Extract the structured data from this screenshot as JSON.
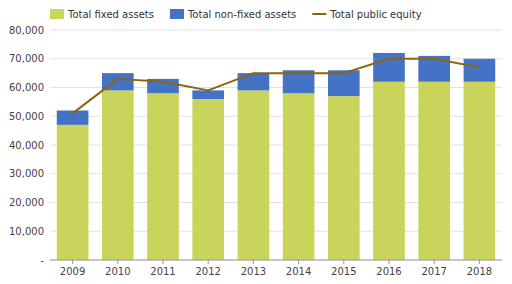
{
  "chart_data": {
    "type": "bar",
    "stacked": true,
    "grid": true,
    "legend": "top",
    "categories": [
      "2009",
      "2010",
      "2011",
      "2012",
      "2013",
      "2014",
      "2015",
      "2016",
      "2017",
      "2018"
    ],
    "series": [
      {
        "name": "Total fixed assets",
        "color": "#c8d45a",
        "type": "bar",
        "values": [
          47000,
          59000,
          58000,
          56000,
          59000,
          58000,
          57000,
          62000,
          62000,
          62000
        ]
      },
      {
        "name": "Total non-fixed assets",
        "color": "#4472c4",
        "type": "bar",
        "values": [
          5000,
          6000,
          5000,
          3000,
          6000,
          8000,
          9000,
          10000,
          9000,
          8000
        ]
      },
      {
        "name": "Total public equity",
        "color": "#8b6508",
        "type": "line",
        "values": [
          51000,
          63000,
          62000,
          59000,
          65000,
          65000,
          65000,
          70000,
          70000,
          67000
        ]
      }
    ],
    "ylim": [
      0,
      80000
    ],
    "yticks": [
      {
        "value": 0,
        "label": "-"
      },
      {
        "value": 10000,
        "label": "10,000"
      },
      {
        "value": 20000,
        "label": "20,000"
      },
      {
        "value": 30000,
        "label": "30,000"
      },
      {
        "value": 40000,
        "label": "40,000"
      },
      {
        "value": 50000,
        "label": "50,000"
      },
      {
        "value": 60000,
        "label": "60,000"
      },
      {
        "value": 70000,
        "label": "70,000"
      },
      {
        "value": 80000,
        "label": "80,000"
      }
    ]
  }
}
